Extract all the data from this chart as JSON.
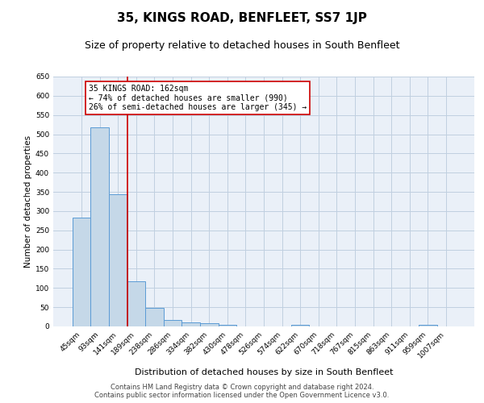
{
  "title": "35, KINGS ROAD, BENFLEET, SS7 1JP",
  "subtitle": "Size of property relative to detached houses in South Benfleet",
  "xlabel": "Distribution of detached houses by size in South Benfleet",
  "ylabel": "Number of detached properties",
  "footer_line1": "Contains HM Land Registry data © Crown copyright and database right 2024.",
  "footer_line2": "Contains public sector information licensed under the Open Government Licence v3.0.",
  "categories": [
    "45sqm",
    "93sqm",
    "141sqm",
    "189sqm",
    "238sqm",
    "286sqm",
    "334sqm",
    "382sqm",
    "430sqm",
    "478sqm",
    "526sqm",
    "574sqm",
    "622sqm",
    "670sqm",
    "718sqm",
    "767sqm",
    "815sqm",
    "863sqm",
    "911sqm",
    "959sqm",
    "1007sqm"
  ],
  "values": [
    283,
    517,
    343,
    118,
    48,
    17,
    11,
    9,
    5,
    0,
    0,
    0,
    5,
    0,
    0,
    0,
    0,
    0,
    0,
    5,
    0
  ],
  "bar_color": "#c5d8e8",
  "bar_edge_color": "#5b9bd5",
  "ylim": [
    0,
    650
  ],
  "yticks": [
    0,
    50,
    100,
    150,
    200,
    250,
    300,
    350,
    400,
    450,
    500,
    550,
    600,
    650
  ],
  "red_line_x": 2.5,
  "annotation_line1": "35 KINGS ROAD: 162sqm",
  "annotation_line2": "← 74% of detached houses are smaller (990)",
  "annotation_line3": "26% of semi-detached houses are larger (345) →",
  "red_line_color": "#cc0000",
  "grid_color": "#c0cfe0",
  "bg_color": "#eaf0f8",
  "title_fontsize": 11,
  "subtitle_fontsize": 9,
  "annotation_fontsize": 7,
  "ylabel_fontsize": 7.5,
  "xlabel_fontsize": 8,
  "tick_fontsize": 6.5,
  "footer_fontsize": 6
}
